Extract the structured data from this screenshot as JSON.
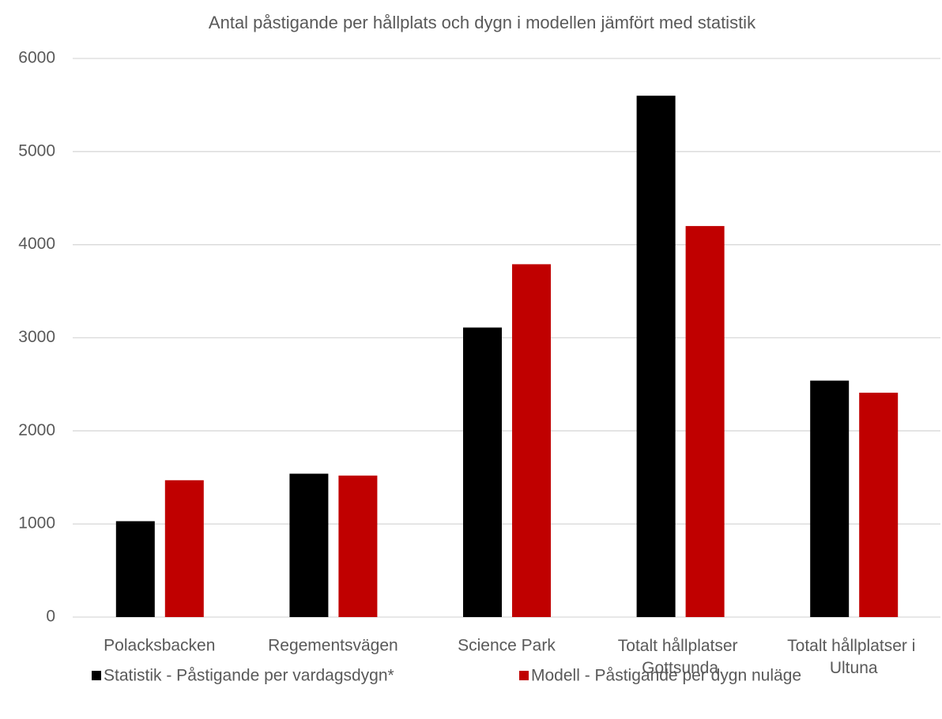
{
  "chart_data": {
    "type": "bar",
    "title": "Antal påstigande per hållplats och dygn i modellen jämfört med statistik",
    "categories": [
      "Polacksbacken",
      "Regementsvägen",
      "Science Park",
      "Totalt hållplatser Gottsunda",
      "Totalt hållplatser i Ultuna"
    ],
    "series": [
      {
        "name": "Statistik - Påstigande per vardagsdygn*",
        "color": "#000000",
        "values": [
          1030,
          1540,
          3110,
          5600,
          2540
        ]
      },
      {
        "name": "Modell - Påstigande per dygn nuläge",
        "color": "#c00000",
        "values": [
          1470,
          1520,
          3790,
          4200,
          2410
        ]
      }
    ],
    "ylim": [
      0,
      6000
    ],
    "yticks": [
      0,
      1000,
      2000,
      3000,
      4000,
      5000,
      6000
    ],
    "grid": true,
    "legend": "bottom"
  }
}
